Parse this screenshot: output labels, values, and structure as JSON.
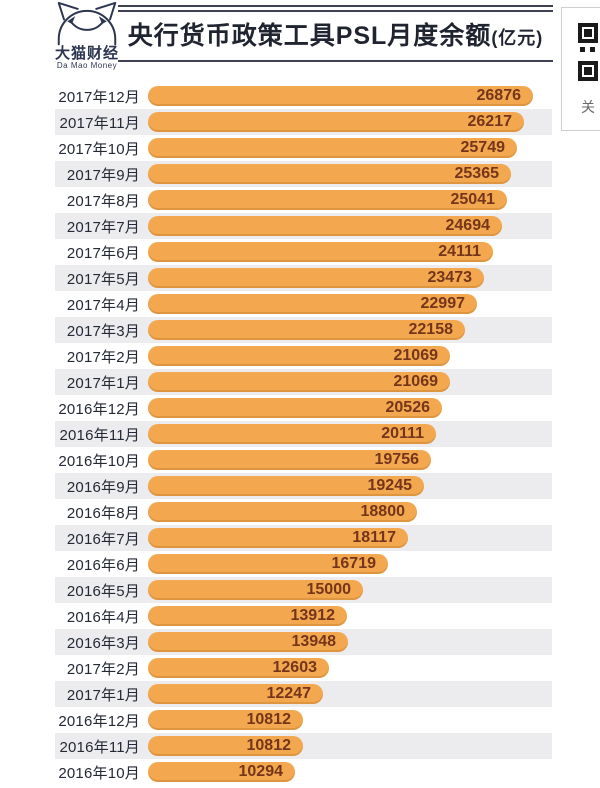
{
  "brand": {
    "name": "大猫财经",
    "subtitle": "Da Mao Money",
    "icon": "cat-face-icon",
    "color": "#2C3650"
  },
  "header": {
    "title": "央行货币政策工具PSL月度余额",
    "unit": "(亿元)"
  },
  "qr_panel": {
    "icon": "qr-code-icon",
    "partial_text": "关"
  },
  "colors": {
    "bar": "#F3A84F",
    "value_text": "#74351A",
    "stripe": "#ECECEE",
    "title_text": "#1F2430",
    "label_text": "#242936",
    "rule": "#3D4152",
    "brand_navy": "#2C3650"
  },
  "chart_data": {
    "type": "bar",
    "orientation": "horizontal",
    "title": "央行货币政策工具PSL月度余额(亿元)",
    "xlabel": "",
    "ylabel": "",
    "xlim": [
      0,
      26876
    ],
    "grid": false,
    "legend": false,
    "striped_rows": true,
    "value_label_position": "inside-right",
    "categories": [
      "2017年12月",
      "2017年11月",
      "2017年10月",
      "2017年9月",
      "2017年8月",
      "2017年7月",
      "2017年6月",
      "2017年5月",
      "2017年4月",
      "2017年3月",
      "2017年2月",
      "2017年1月",
      "2016年12月",
      "2016年11月",
      "2016年10月",
      "2016年9月",
      "2016年8月",
      "2016年7月",
      "2016年6月",
      "2016年5月",
      "2016年4月",
      "2016年3月",
      "2017年2月",
      "2017年1月",
      "2016年12月",
      "2016年11月",
      "2016年10月"
    ],
    "values": [
      26876,
      26217,
      25749,
      25365,
      25041,
      24694,
      24111,
      23473,
      22997,
      22158,
      21069,
      21069,
      20526,
      20111,
      19756,
      19245,
      18800,
      18117,
      16719,
      15000,
      13912,
      13948,
      12603,
      12247,
      10812,
      10812,
      10294
    ]
  }
}
